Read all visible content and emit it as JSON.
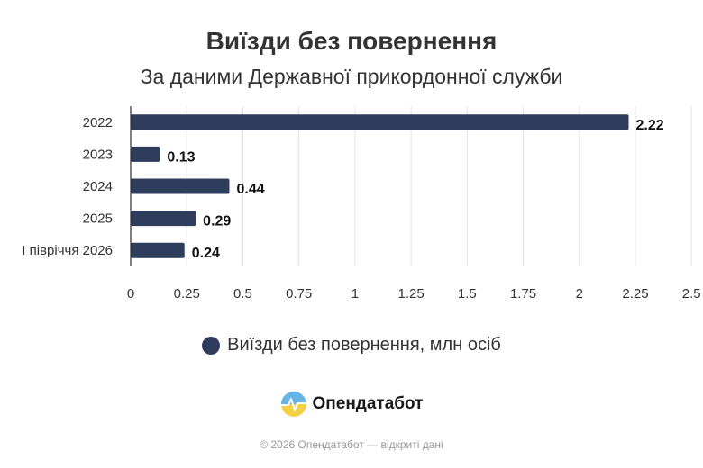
{
  "colors": {
    "bar": "#2e3d5c",
    "grid": "#e2e2e2",
    "axis": "#555555",
    "text": "#333333"
  },
  "chart_data": {
    "type": "bar",
    "orientation": "horizontal",
    "title": "Виїзди без повернення",
    "subtitle": "За даними Державної прикордонної служби",
    "categories": [
      "2022",
      "2023",
      "2024",
      "2025",
      "І півріччя 2026"
    ],
    "series": [
      {
        "name": "Виїзди без повернення, млн осіб",
        "values": [
          2.22,
          0.13,
          0.44,
          0.29,
          0.24
        ]
      }
    ],
    "value_labels": [
      "2.22",
      "0.13",
      "0.44",
      "0.29",
      "0.24"
    ],
    "xlim": [
      0,
      2.5
    ],
    "x_ticks": [
      "0",
      "0.25",
      "0.5",
      "0.75",
      "1",
      "1.25",
      "1.5",
      "1.75",
      "2",
      "2.25",
      "2.5"
    ],
    "grid": true,
    "legend_position": "bottom"
  },
  "brand": {
    "name": "Опендатабот",
    "icon": "opendatabot-logo-icon"
  },
  "footer": "© 2026 Опендатабот — відкриті дані"
}
